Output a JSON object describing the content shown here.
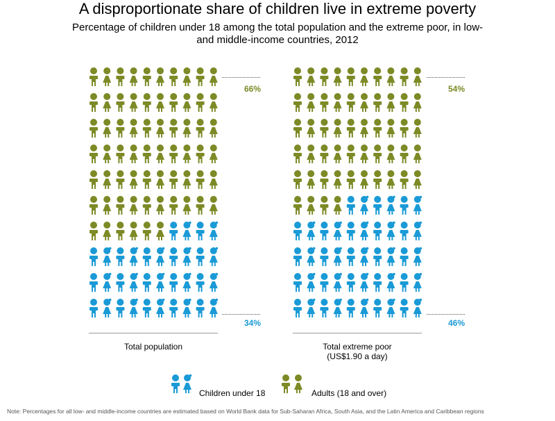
{
  "title": "A disproportionate share of children live in extreme poverty",
  "subtitle": "Percentage of children under 18 among the total population and the extreme poor, in low-and middle-income countries, 2012",
  "colors": {
    "children": "#1a9ad6",
    "adults": "#7d8a26",
    "adults_label": "#7d8a26",
    "children_label": "#1a9ad6"
  },
  "chart_data": {
    "type": "pictogram",
    "title": "A disproportionate share of children live in extreme poverty",
    "subtitle": "Percentage of children under 18 among the total population and the extreme poor, in low-and middle-income countries, 2012",
    "categories": [
      "Total population",
      "Total extreme poor (US$1.90 a day)"
    ],
    "series": [
      {
        "name": "Children under 18",
        "values": [
          34,
          46
        ]
      },
      {
        "name": "Adults (18 and over)",
        "values": [
          66,
          54
        ]
      }
    ],
    "ylim": [
      0,
      100
    ]
  },
  "panels": [
    {
      "caption_line1": "Total population",
      "caption_line2": "",
      "adults_label": "66%",
      "children_label": "34%"
    },
    {
      "caption_line1": "Total extreme poor",
      "caption_line2": "(US$1.90 a day)",
      "adults_label": "54%",
      "children_label": "46%"
    }
  ],
  "legend": {
    "children": "Children under 18",
    "adults": "Adults (18 and over)"
  },
  "note": "Note: Percentages for all low- and middle-income countries are estimated based on World Bank data for Sub-Saharan Africa, South Asia, and the Latin America and Caribbean regions"
}
